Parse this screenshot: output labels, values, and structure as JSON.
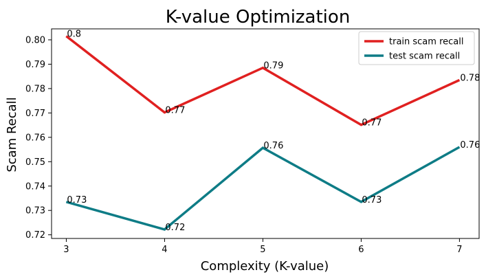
{
  "chart_data": {
    "type": "line",
    "title": "K-value Optimization",
    "xlabel": "Complexity (K-value)",
    "ylabel": "Scam Recall",
    "x": [
      3,
      4,
      5,
      6,
      7
    ],
    "xlim": [
      2.85,
      7.2
    ],
    "ylim": [
      0.7185,
      0.8045
    ],
    "yticks": [
      0.72,
      0.73,
      0.74,
      0.75,
      0.76,
      0.77,
      0.78,
      0.79,
      0.8
    ],
    "ytick_labels": [
      "0.72",
      "0.73",
      "0.74",
      "0.75",
      "0.76",
      "0.77",
      "0.78",
      "0.79",
      "0.80"
    ],
    "xtick_labels": [
      "3",
      "4",
      "5",
      "6",
      "7"
    ],
    "grid": false,
    "legend_position": "top-right",
    "series": [
      {
        "name": "train scam recall",
        "color": "#e02020",
        "values": [
          0.8015,
          0.7702,
          0.7885,
          0.7651,
          0.7835
        ],
        "point_labels": [
          "0.8",
          "0.77",
          "0.79",
          "0.77",
          "0.78"
        ]
      },
      {
        "name": "test scam recall",
        "color": "#0e7c86",
        "values": [
          0.7335,
          0.7222,
          0.7557,
          0.7335,
          0.756
        ],
        "point_labels": [
          "0.73",
          "0.72",
          "0.76",
          "0.73",
          "0.76"
        ]
      }
    ]
  }
}
